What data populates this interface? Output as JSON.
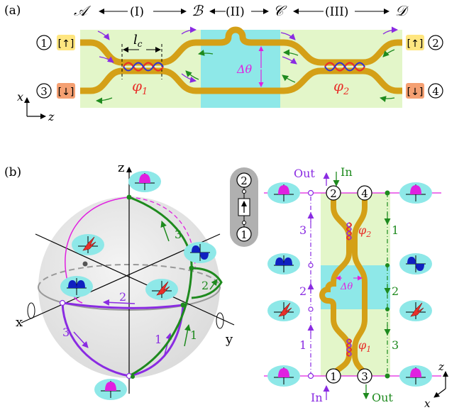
{
  "panel_a": {
    "label": "(a)",
    "points": [
      "𝒜",
      "ℬ",
      "𝒞",
      "𝒟"
    ],
    "sections": [
      "(I)",
      "(II)",
      "(III)"
    ],
    "ports_left": [
      "1",
      "3"
    ],
    "ports_right": [
      "2",
      "4"
    ],
    "spin_up": "[↑]",
    "spin_down": "[↓]",
    "lc_label": "l",
    "lc_sub": "c",
    "phi1": "φ",
    "phi1_sub": "1",
    "phi2": "φ",
    "phi2_sub": "2",
    "delta_theta": "Δθ",
    "axis_x": "x",
    "axis_z": "z"
  },
  "panel_b": {
    "label": "(b)",
    "axis_z": "z",
    "axis_x": "x",
    "axis_y": "y",
    "path_numbers": [
      "1",
      "2",
      "3"
    ],
    "inset_ports": [
      "2",
      "1"
    ],
    "right": {
      "out_label": "Out",
      "in_label": "In",
      "ports_top": [
        "2",
        "4"
      ],
      "ports_bottom": [
        "1",
        "3"
      ],
      "delta_theta": "Δθ",
      "phi1": "φ",
      "phi1_sub": "1",
      "phi2": "φ",
      "phi2_sub": "2",
      "purple_steps": [
        "3",
        "2",
        "1"
      ],
      "green_steps": [
        "1",
        "2",
        "3"
      ],
      "axis_z": "z",
      "axis_x": "x"
    }
  },
  "colors": {
    "waveguide": "#d4a017",
    "region_green": "#e3f6c9",
    "region_cyan": "#8ee8e8",
    "purple": "#8a2be2",
    "green": "#1e8a1e",
    "red": "#e8302a",
    "magenta": "#e020e0",
    "blue": "#1020c0",
    "spin_up_bg": "#ffe680",
    "spin_down_bg": "#f5a072"
  }
}
